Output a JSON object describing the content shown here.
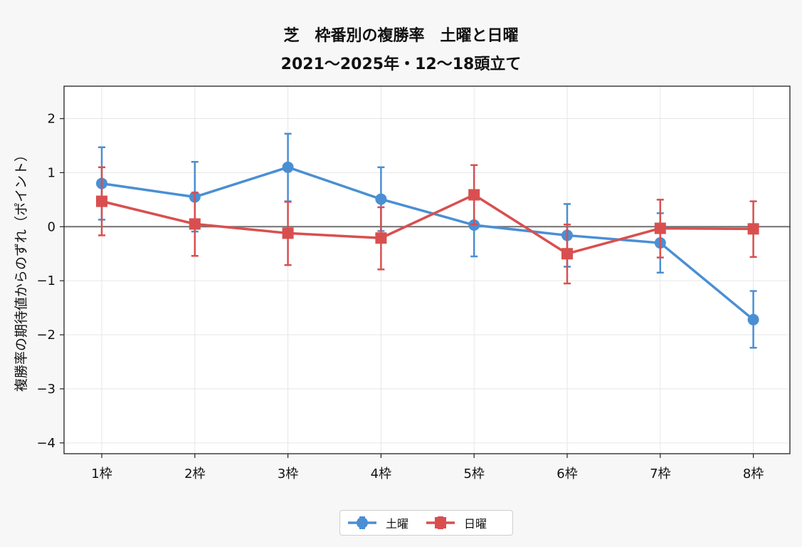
{
  "chart_data": {
    "type": "line",
    "title": "芝　枠番別の複勝率　土曜と日曜",
    "subtitle": "2021〜2025年・12〜18頭立て",
    "xlabel": "",
    "ylabel": "複勝率の期待値からのずれ（ポイント）",
    "categories": [
      "1枠",
      "2枠",
      "3枠",
      "4枠",
      "5枠",
      "6枠",
      "7枠",
      "8枠"
    ],
    "ylim": [
      -4.2,
      2.6
    ],
    "yticks": [
      2,
      1,
      0,
      -1,
      -2,
      -3,
      -4
    ],
    "ytick_labels": [
      "2",
      "1",
      "0",
      "−1",
      "−2",
      "−3",
      "−4"
    ],
    "grid": true,
    "zero_line": true,
    "legend_position": "bottom-center",
    "series": [
      {
        "name": "土曜",
        "color": "#4a8fd4",
        "marker": "circle",
        "values": [
          0.8,
          0.55,
          1.1,
          0.51,
          0.03,
          -0.16,
          -0.3,
          -1.72
        ],
        "err_low": [
          0.13,
          -0.09,
          0.47,
          -0.08,
          -0.55,
          -0.74,
          -0.85,
          -2.24
        ],
        "err_high": [
          1.47,
          1.2,
          1.72,
          1.1,
          0.6,
          0.42,
          0.25,
          -1.19
        ]
      },
      {
        "name": "日曜",
        "color": "#d94f4f",
        "marker": "square",
        "values": [
          0.47,
          0.05,
          -0.12,
          -0.21,
          0.59,
          -0.5,
          -0.03,
          -0.04
        ],
        "err_low": [
          -0.16,
          -0.54,
          -0.71,
          -0.79,
          0.04,
          -1.05,
          -0.57,
          -0.56
        ],
        "err_high": [
          1.1,
          0.63,
          0.46,
          0.36,
          1.14,
          0.04,
          0.5,
          0.47
        ]
      }
    ]
  }
}
